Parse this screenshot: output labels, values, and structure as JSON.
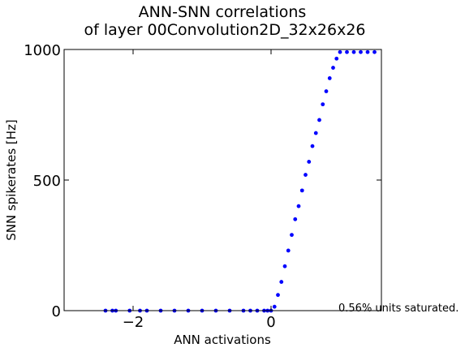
{
  "chart_data": {
    "type": "scatter",
    "title": [
      "ANN-SNN correlations",
      "of layer 00Convolution2D_32x26x26"
    ],
    "xlabel": "ANN activations",
    "ylabel": "SNN spikerates [Hz]",
    "xlim": [
      -3.0,
      1.6
    ],
    "ylim": [
      0,
      1000
    ],
    "xticks": [
      -2,
      0
    ],
    "xtick_labels": [
      "−2",
      "0"
    ],
    "yticks": [
      0,
      500,
      1000
    ],
    "ytick_labels": [
      "0",
      "500",
      "1000"
    ],
    "grid": false,
    "color": "#0000ff",
    "annotation": "0.56% units saturated.",
    "series_description": "Spikerate is 0 for activations below ~0, rises approximately linearly from 0 Hz at activation ~0 to ~990 Hz at activation ~1.0, then saturates near 990 Hz up to ~1.5.",
    "points": [
      [
        -2.4,
        0
      ],
      [
        -2.3,
        0
      ],
      [
        -2.25,
        0
      ],
      [
        -2.05,
        0
      ],
      [
        -1.9,
        0
      ],
      [
        -1.8,
        0
      ],
      [
        -1.6,
        0
      ],
      [
        -1.4,
        0
      ],
      [
        -1.2,
        0
      ],
      [
        -1.0,
        0
      ],
      [
        -0.8,
        0
      ],
      [
        -0.6,
        0
      ],
      [
        -0.4,
        0
      ],
      [
        -0.3,
        0
      ],
      [
        -0.2,
        0
      ],
      [
        -0.1,
        0
      ],
      [
        -0.05,
        0
      ],
      [
        0.0,
        0
      ],
      [
        0.05,
        15
      ],
      [
        0.1,
        60
      ],
      [
        0.15,
        110
      ],
      [
        0.2,
        170
      ],
      [
        0.25,
        230
      ],
      [
        0.3,
        290
      ],
      [
        0.35,
        350
      ],
      [
        0.4,
        400
      ],
      [
        0.45,
        460
      ],
      [
        0.5,
        520
      ],
      [
        0.55,
        570
      ],
      [
        0.6,
        630
      ],
      [
        0.65,
        680
      ],
      [
        0.7,
        730
      ],
      [
        0.75,
        790
      ],
      [
        0.8,
        840
      ],
      [
        0.85,
        890
      ],
      [
        0.9,
        930
      ],
      [
        0.95,
        965
      ],
      [
        1.0,
        990
      ],
      [
        1.1,
        990
      ],
      [
        1.2,
        990
      ],
      [
        1.3,
        990
      ],
      [
        1.4,
        990
      ],
      [
        1.5,
        990
      ]
    ]
  }
}
